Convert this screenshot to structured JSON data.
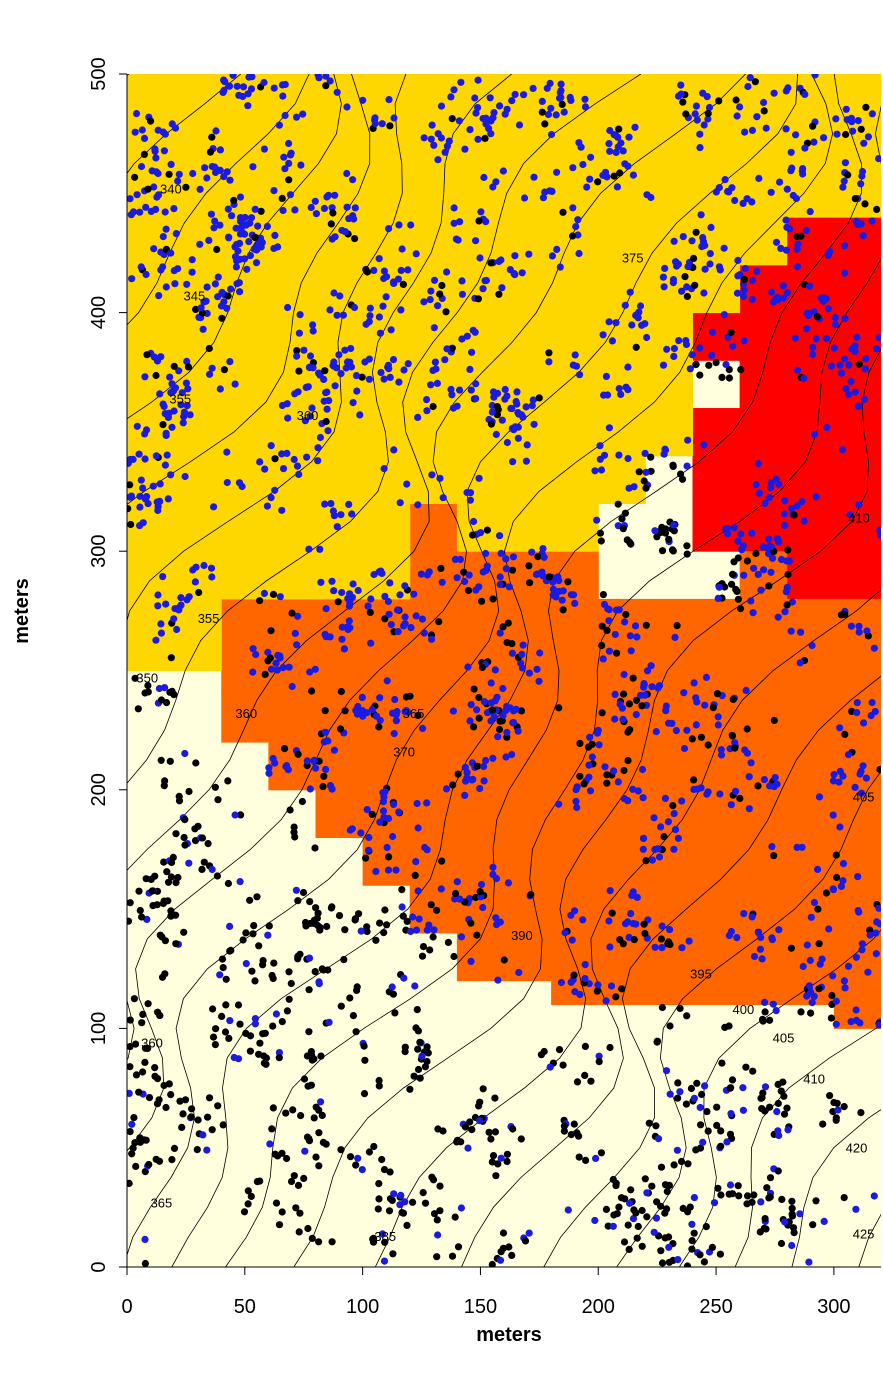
{
  "chart_data": {
    "type": "map",
    "xlabel": "meters",
    "ylabel": "meters",
    "xlim": [
      0,
      320
    ],
    "ylim": [
      0,
      500
    ],
    "x_ticks": [
      0,
      50,
      100,
      150,
      200,
      250,
      300
    ],
    "y_ticks": [
      0,
      100,
      200,
      300,
      400,
      500
    ],
    "grid": false,
    "cell_size_m": 20,
    "zone_colors": {
      "pale": "#FFFFDD",
      "yellow": "#FFD700",
      "orange": "#FF6600",
      "red": "#FF0000"
    },
    "point_colors": {
      "black": "#000000",
      "blue": "#1A1AE0"
    },
    "zones": [
      {
        "color": "red",
        "row_y_ranges": [
          {
            "y": [
              280,
              300
            ],
            "x": [
              280,
              320
            ]
          },
          {
            "y": [
              300,
              360
            ],
            "x": [
              240,
              320
            ]
          },
          {
            "y": [
              360,
              380
            ],
            "x": [
              260,
              320
            ]
          },
          {
            "y": [
              380,
              400
            ],
            "x": [
              240,
              320
            ]
          },
          {
            "y": [
              400,
              420
            ],
            "x": [
              260,
              320
            ]
          },
          {
            "y": [
              420,
              440
            ],
            "x": [
              280,
              320
            ]
          }
        ]
      },
      {
        "color": "orange",
        "row_y_ranges": [
          {
            "y": [
              100,
              110
            ],
            "x": [
              300,
              320
            ]
          },
          {
            "y": [
              110,
              120
            ],
            "x": [
              180,
              320
            ]
          },
          {
            "y": [
              120,
              140
            ],
            "x": [
              140,
              320
            ]
          },
          {
            "y": [
              140,
              160
            ],
            "x": [
              120,
              320
            ]
          },
          {
            "y": [
              160,
              180
            ],
            "x": [
              100,
              320
            ]
          },
          {
            "y": [
              180,
              200
            ],
            "x": [
              80,
              320
            ]
          },
          {
            "y": [
              200,
              220
            ],
            "x": [
              60,
              320
            ]
          },
          {
            "y": [
              220,
              240
            ],
            "x": [
              40,
              320
            ]
          },
          {
            "y": [
              240,
              280
            ],
            "x": [
              40,
              320
            ]
          },
          {
            "y": [
              280,
              300
            ],
            "x": [
              120,
              200
            ]
          },
          {
            "y": [
              280,
              300
            ],
            "x": [
              260,
              280
            ]
          },
          {
            "y": [
              300,
              320
            ],
            "x": [
              120,
              140
            ]
          }
        ]
      },
      {
        "color": "yellow",
        "row_y_ranges": [
          {
            "y": [
              250,
              280
            ],
            "x": [
              0,
              40
            ]
          },
          {
            "y": [
              280,
              300
            ],
            "x": [
              0,
              120
            ]
          },
          {
            "y": [
              300,
              320
            ],
            "x": [
              0,
              120
            ]
          },
          {
            "y": [
              300,
              320
            ],
            "x": [
              140,
              200
            ]
          },
          {
            "y": [
              320,
              340
            ],
            "x": [
              0,
              220
            ]
          },
          {
            "y": [
              340,
              360
            ],
            "x": [
              0,
              240
            ]
          },
          {
            "y": [
              360,
              400
            ],
            "x": [
              0,
              240
            ]
          },
          {
            "y": [
              400,
              420
            ],
            "x": [
              0,
              260
            ]
          },
          {
            "y": [
              420,
              440
            ],
            "x": [
              0,
              280
            ]
          },
          {
            "y": [
              440,
              500
            ],
            "x": [
              0,
              320
            ]
          }
        ]
      }
    ],
    "contour_labels": [
      {
        "text": "340",
        "x": 14,
        "y": 450
      },
      {
        "text": "345",
        "x": 24,
        "y": 405
      },
      {
        "text": "355",
        "x": 18,
        "y": 362
      },
      {
        "text": "360",
        "x": 72,
        "y": 355
      },
      {
        "text": "375",
        "x": 210,
        "y": 421
      },
      {
        "text": "355",
        "x": 30,
        "y": 270
      },
      {
        "text": "350",
        "x": 4,
        "y": 245
      },
      {
        "text": "360",
        "x": 46,
        "y": 230
      },
      {
        "text": "365",
        "x": 117,
        "y": 230
      },
      {
        "text": "370",
        "x": 113,
        "y": 214
      },
      {
        "text": "390",
        "x": 163,
        "y": 137
      },
      {
        "text": "395",
        "x": 239,
        "y": 121
      },
      {
        "text": "400",
        "x": 257,
        "y": 106
      },
      {
        "text": "405",
        "x": 274,
        "y": 94
      },
      {
        "text": "410",
        "x": 287,
        "y": 77
      },
      {
        "text": "420",
        "x": 305,
        "y": 48
      },
      {
        "text": "405",
        "x": 308,
        "y": 195
      },
      {
        "text": "410",
        "x": 306,
        "y": 312
      },
      {
        "text": "360",
        "x": 6,
        "y": 92
      },
      {
        "text": "365",
        "x": 10,
        "y": 25
      },
      {
        "text": "385",
        "x": 105,
        "y": 11
      },
      {
        "text": "425",
        "x": 308,
        "y": 12
      }
    ]
  }
}
